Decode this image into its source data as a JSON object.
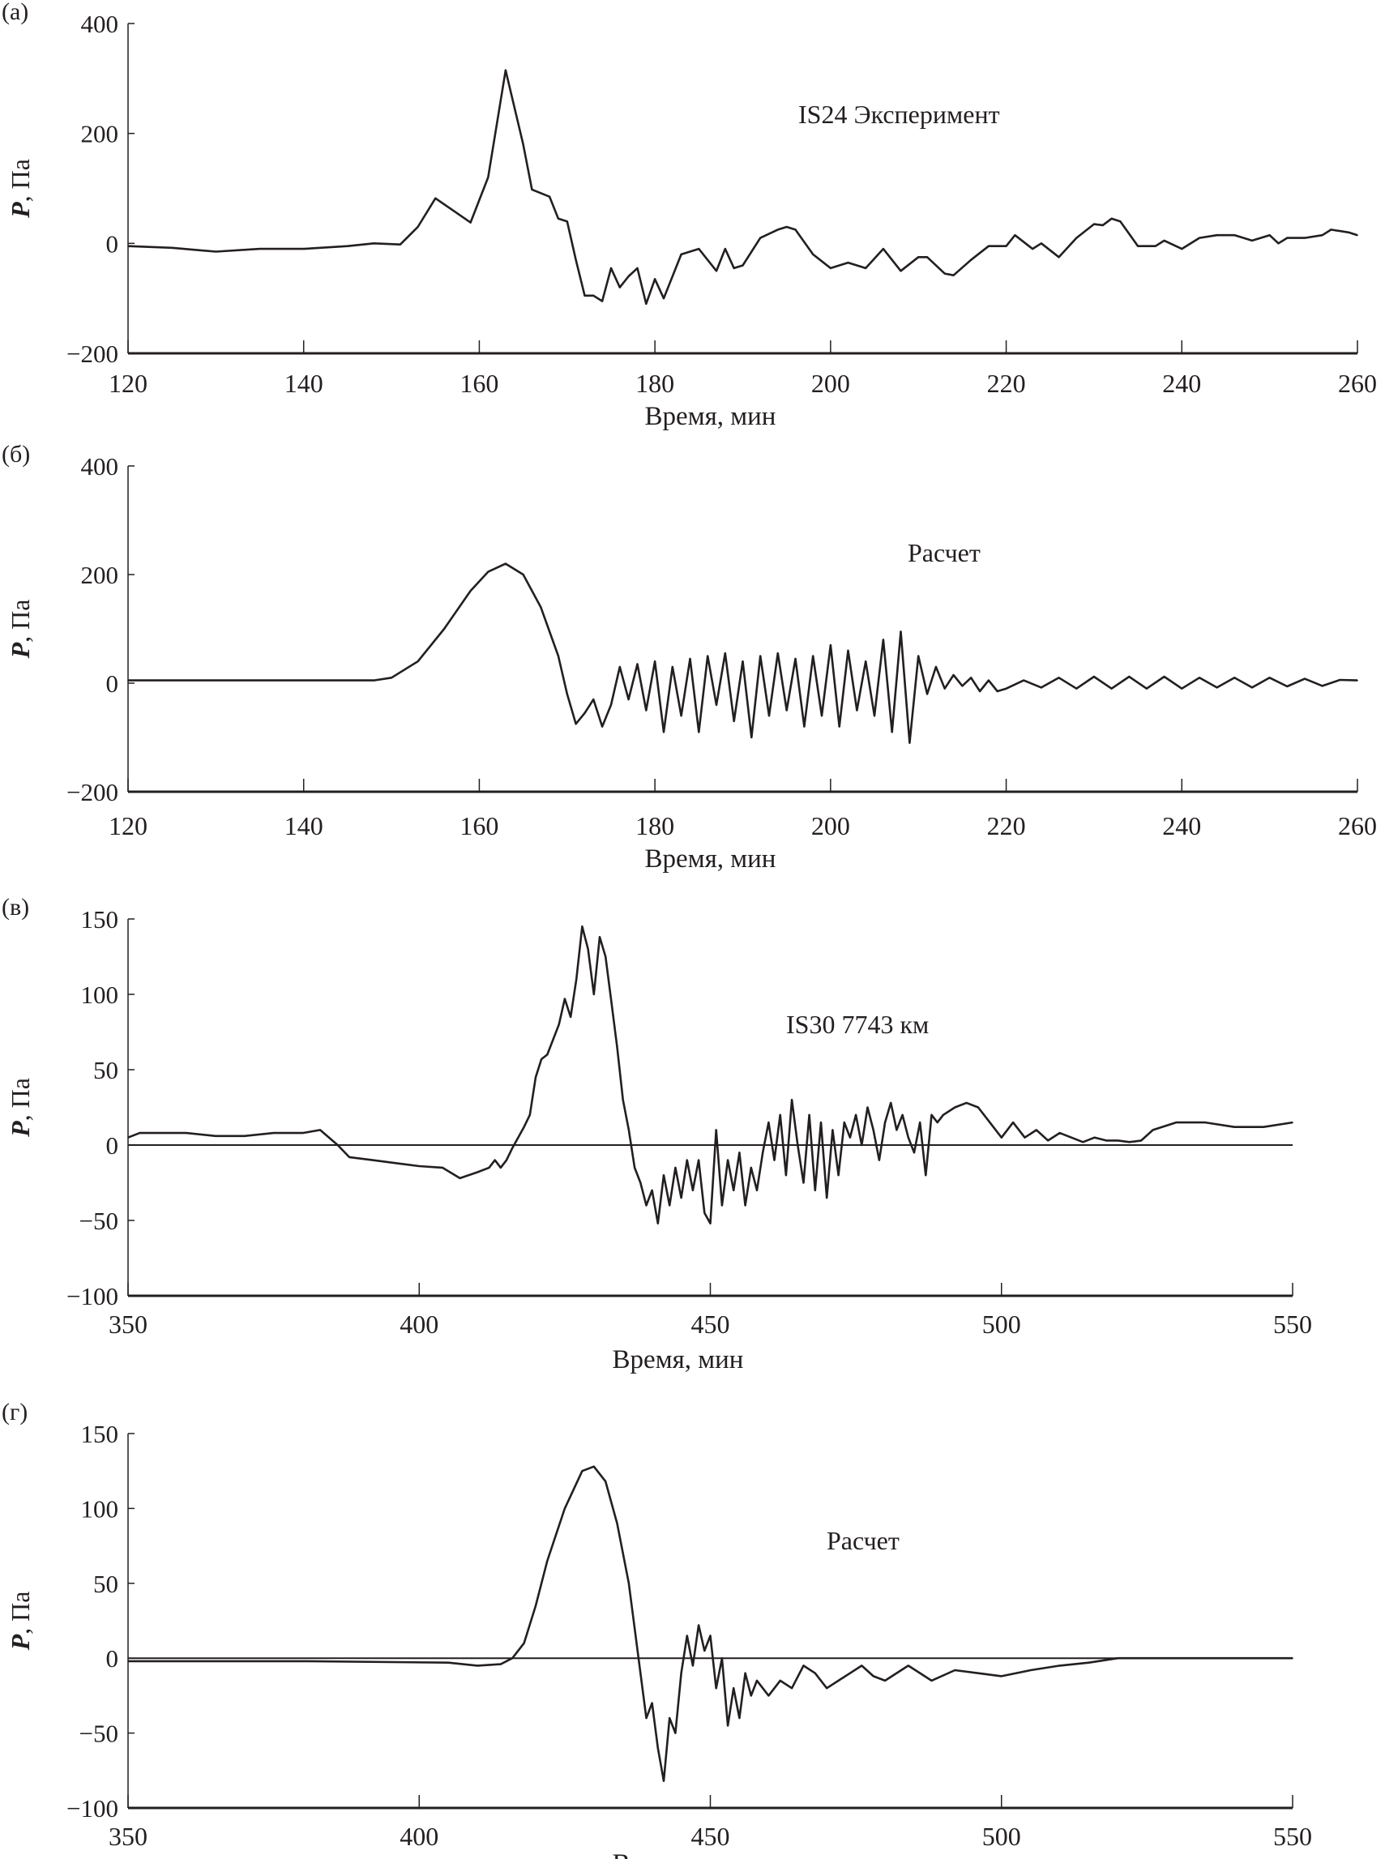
{
  "chart_data": [
    {
      "type": "line",
      "panel_label": "(а)",
      "annotation": "IS24 Эксперимент",
      "xlabel": "Время, мин",
      "ylabel_italic": "P",
      "ylabel_rest": ", Па",
      "xlim": [
        120,
        260
      ],
      "ylim": [
        -200,
        400
      ],
      "xticks": [
        120,
        140,
        160,
        180,
        200,
        220,
        240,
        260
      ],
      "yticks": [
        -200,
        0,
        200,
        400
      ],
      "zero_line": false,
      "points": [
        [
          120,
          -5
        ],
        [
          125,
          -8
        ],
        [
          130,
          -15
        ],
        [
          135,
          -10
        ],
        [
          140,
          -10
        ],
        [
          145,
          -5
        ],
        [
          148,
          0
        ],
        [
          151,
          -2
        ],
        [
          153,
          30
        ],
        [
          155,
          82
        ],
        [
          157,
          60
        ],
        [
          159,
          38
        ],
        [
          161,
          120
        ],
        [
          163,
          315
        ],
        [
          165,
          180
        ],
        [
          166,
          98
        ],
        [
          168,
          85
        ],
        [
          169,
          45
        ],
        [
          170,
          40
        ],
        [
          171,
          -30
        ],
        [
          172,
          -95
        ],
        [
          173,
          -95
        ],
        [
          174,
          -105
        ],
        [
          175,
          -45
        ],
        [
          176,
          -80
        ],
        [
          177,
          -60
        ],
        [
          178,
          -45
        ],
        [
          179,
          -110
        ],
        [
          180,
          -65
        ],
        [
          181,
          -100
        ],
        [
          183,
          -20
        ],
        [
          185,
          -10
        ],
        [
          187,
          -50
        ],
        [
          188,
          -10
        ],
        [
          189,
          -45
        ],
        [
          190,
          -40
        ],
        [
          192,
          10
        ],
        [
          194,
          25
        ],
        [
          195,
          30
        ],
        [
          196,
          25
        ],
        [
          198,
          -20
        ],
        [
          200,
          -45
        ],
        [
          202,
          -35
        ],
        [
          204,
          -45
        ],
        [
          206,
          -10
        ],
        [
          208,
          -50
        ],
        [
          210,
          -25
        ],
        [
          211,
          -25
        ],
        [
          213,
          -55
        ],
        [
          214,
          -58
        ],
        [
          216,
          -30
        ],
        [
          218,
          -5
        ],
        [
          220,
          -5
        ],
        [
          221,
          15
        ],
        [
          223,
          -10
        ],
        [
          224,
          0
        ],
        [
          226,
          -25
        ],
        [
          228,
          10
        ],
        [
          230,
          35
        ],
        [
          231,
          33
        ],
        [
          232,
          45
        ],
        [
          233,
          40
        ],
        [
          235,
          -5
        ],
        [
          237,
          -5
        ],
        [
          238,
          5
        ],
        [
          240,
          -10
        ],
        [
          242,
          10
        ],
        [
          244,
          15
        ],
        [
          246,
          15
        ],
        [
          248,
          5
        ],
        [
          250,
          15
        ],
        [
          251,
          0
        ],
        [
          252,
          10
        ],
        [
          254,
          10
        ],
        [
          256,
          15
        ],
        [
          257,
          25
        ],
        [
          259,
          20
        ],
        [
          260,
          15
        ]
      ]
    },
    {
      "type": "line",
      "panel_label": "(б)",
      "annotation": "Расчет",
      "xlabel": "Время, мин",
      "ylabel_italic": "P",
      "ylabel_rest": ", Па",
      "xlim": [
        120,
        260
      ],
      "ylim": [
        -200,
        400
      ],
      "xticks": [
        120,
        140,
        160,
        180,
        200,
        220,
        240,
        260
      ],
      "yticks": [
        -200,
        0,
        200,
        400
      ],
      "zero_line": false,
      "points": [
        [
          120,
          5
        ],
        [
          130,
          5
        ],
        [
          140,
          5
        ],
        [
          148,
          5
        ],
        [
          150,
          10
        ],
        [
          153,
          40
        ],
        [
          156,
          100
        ],
        [
          159,
          170
        ],
        [
          161,
          205
        ],
        [
          163,
          220
        ],
        [
          165,
          200
        ],
        [
          167,
          140
        ],
        [
          169,
          50
        ],
        [
          170,
          -20
        ],
        [
          171,
          -75
        ],
        [
          172,
          -55
        ],
        [
          173,
          -30
        ],
        [
          174,
          -80
        ],
        [
          175,
          -40
        ],
        [
          176,
          30
        ],
        [
          177,
          -30
        ],
        [
          178,
          35
        ],
        [
          179,
          -50
        ],
        [
          180,
          40
        ],
        [
          181,
          -90
        ],
        [
          182,
          30
        ],
        [
          183,
          -60
        ],
        [
          184,
          45
        ],
        [
          185,
          -90
        ],
        [
          186,
          50
        ],
        [
          187,
          -40
        ],
        [
          188,
          55
        ],
        [
          189,
          -70
        ],
        [
          190,
          40
        ],
        [
          191,
          -100
        ],
        [
          192,
          50
        ],
        [
          193,
          -60
        ],
        [
          194,
          55
        ],
        [
          195,
          -50
        ],
        [
          196,
          45
        ],
        [
          197,
          -80
        ],
        [
          198,
          50
        ],
        [
          199,
          -60
        ],
        [
          200,
          70
        ],
        [
          201,
          -80
        ],
        [
          202,
          60
        ],
        [
          203,
          -50
        ],
        [
          204,
          40
        ],
        [
          205,
          -60
        ],
        [
          206,
          80
        ],
        [
          207,
          -90
        ],
        [
          208,
          95
        ],
        [
          209,
          -110
        ],
        [
          210,
          50
        ],
        [
          211,
          -20
        ],
        [
          212,
          30
        ],
        [
          213,
          -10
        ],
        [
          214,
          15
        ],
        [
          215,
          -5
        ],
        [
          216,
          10
        ],
        [
          217,
          -15
        ],
        [
          218,
          5
        ],
        [
          219,
          -15
        ],
        [
          220,
          -10
        ],
        [
          222,
          5
        ],
        [
          224,
          -8
        ],
        [
          226,
          10
        ],
        [
          228,
          -10
        ],
        [
          230,
          12
        ],
        [
          232,
          -10
        ],
        [
          234,
          12
        ],
        [
          236,
          -10
        ],
        [
          238,
          12
        ],
        [
          240,
          -10
        ],
        [
          242,
          10
        ],
        [
          244,
          -8
        ],
        [
          246,
          10
        ],
        [
          248,
          -8
        ],
        [
          250,
          10
        ],
        [
          252,
          -6
        ],
        [
          254,
          8
        ],
        [
          256,
          -5
        ],
        [
          258,
          6
        ],
        [
          260,
          5
        ]
      ]
    },
    {
      "type": "line",
      "panel_label": "(в)",
      "annotation": "IS30 7743 км",
      "xlabel": "Время, мин",
      "ylabel_italic": "P",
      "ylabel_rest": ", Па",
      "xlim": [
        350,
        550
      ],
      "ylim": [
        -100,
        150
      ],
      "xticks": [
        350,
        400,
        450,
        500,
        550
      ],
      "yticks": [
        -100,
        -50,
        0,
        50,
        100,
        150
      ],
      "zero_line": true,
      "points": [
        [
          350,
          5
        ],
        [
          352,
          8
        ],
        [
          360,
          8
        ],
        [
          365,
          6
        ],
        [
          370,
          6
        ],
        [
          375,
          8
        ],
        [
          380,
          8
        ],
        [
          383,
          10
        ],
        [
          386,
          0
        ],
        [
          388,
          -8
        ],
        [
          392,
          -10
        ],
        [
          396,
          -12
        ],
        [
          400,
          -14
        ],
        [
          404,
          -15
        ],
        [
          407,
          -22
        ],
        [
          410,
          -18
        ],
        [
          412,
          -15
        ],
        [
          413,
          -10
        ],
        [
          414,
          -15
        ],
        [
          415,
          -10
        ],
        [
          416,
          -2
        ],
        [
          417,
          5
        ],
        [
          418,
          12
        ],
        [
          419,
          20
        ],
        [
          420,
          45
        ],
        [
          421,
          57
        ],
        [
          422,
          60
        ],
        [
          424,
          80
        ],
        [
          425,
          97
        ],
        [
          426,
          85
        ],
        [
          427,
          110
        ],
        [
          428,
          145
        ],
        [
          429,
          130
        ],
        [
          430,
          100
        ],
        [
          431,
          138
        ],
        [
          432,
          125
        ],
        [
          433,
          95
        ],
        [
          434,
          65
        ],
        [
          435,
          30
        ],
        [
          436,
          10
        ],
        [
          437,
          -15
        ],
        [
          438,
          -25
        ],
        [
          439,
          -40
        ],
        [
          440,
          -30
        ],
        [
          441,
          -52
        ],
        [
          442,
          -20
        ],
        [
          443,
          -40
        ],
        [
          444,
          -15
        ],
        [
          445,
          -35
        ],
        [
          446,
          -10
        ],
        [
          447,
          -30
        ],
        [
          448,
          -10
        ],
        [
          449,
          -45
        ],
        [
          450,
          -52
        ],
        [
          451,
          10
        ],
        [
          452,
          -40
        ],
        [
          453,
          -10
        ],
        [
          454,
          -30
        ],
        [
          455,
          -5
        ],
        [
          456,
          -40
        ],
        [
          457,
          -15
        ],
        [
          458,
          -30
        ],
        [
          459,
          -5
        ],
        [
          460,
          15
        ],
        [
          461,
          -10
        ],
        [
          462,
          20
        ],
        [
          463,
          -20
        ],
        [
          464,
          30
        ],
        [
          465,
          0
        ],
        [
          466,
          -25
        ],
        [
          467,
          20
        ],
        [
          468,
          -30
        ],
        [
          469,
          15
        ],
        [
          470,
          -35
        ],
        [
          471,
          10
        ],
        [
          472,
          -20
        ],
        [
          473,
          15
        ],
        [
          474,
          5
        ],
        [
          475,
          20
        ],
        [
          476,
          0
        ],
        [
          477,
          25
        ],
        [
          478,
          10
        ],
        [
          479,
          -10
        ],
        [
          480,
          15
        ],
        [
          481,
          28
        ],
        [
          482,
          10
        ],
        [
          483,
          20
        ],
        [
          484,
          5
        ],
        [
          485,
          -5
        ],
        [
          486,
          15
        ],
        [
          487,
          -20
        ],
        [
          488,
          20
        ],
        [
          489,
          15
        ],
        [
          490,
          20
        ],
        [
          492,
          25
        ],
        [
          494,
          28
        ],
        [
          496,
          25
        ],
        [
          498,
          15
        ],
        [
          500,
          5
        ],
        [
          502,
          15
        ],
        [
          504,
          5
        ],
        [
          506,
          10
        ],
        [
          508,
          3
        ],
        [
          510,
          8
        ],
        [
          512,
          5
        ],
        [
          514,
          2
        ],
        [
          516,
          5
        ],
        [
          518,
          3
        ],
        [
          520,
          3
        ],
        [
          522,
          2
        ],
        [
          524,
          3
        ],
        [
          526,
          10
        ],
        [
          530,
          15
        ],
        [
          535,
          15
        ],
        [
          540,
          12
        ],
        [
          545,
          12
        ],
        [
          550,
          15
        ]
      ]
    },
    {
      "type": "line",
      "panel_label": "(г)",
      "annotation": "Расчет",
      "xlabel": "Время, мин",
      "ylabel_italic": "P",
      "ylabel_rest": ", Па",
      "xlim": [
        350,
        550
      ],
      "ylim": [
        -100,
        150
      ],
      "xticks": [
        350,
        400,
        450,
        500,
        550
      ],
      "yticks": [
        -100,
        -50,
        0,
        50,
        100,
        150
      ],
      "zero_line": true,
      "points": [
        [
          350,
          -2
        ],
        [
          380,
          -2
        ],
        [
          405,
          -3
        ],
        [
          410,
          -5
        ],
        [
          414,
          -4
        ],
        [
          416,
          0
        ],
        [
          418,
          10
        ],
        [
          420,
          35
        ],
        [
          422,
          65
        ],
        [
          425,
          100
        ],
        [
          428,
          125
        ],
        [
          430,
          128
        ],
        [
          432,
          118
        ],
        [
          434,
          90
        ],
        [
          436,
          50
        ],
        [
          437,
          20
        ],
        [
          438,
          -10
        ],
        [
          439,
          -40
        ],
        [
          440,
          -30
        ],
        [
          441,
          -60
        ],
        [
          442,
          -82
        ],
        [
          443,
          -40
        ],
        [
          444,
          -50
        ],
        [
          445,
          -10
        ],
        [
          446,
          15
        ],
        [
          447,
          -5
        ],
        [
          448,
          22
        ],
        [
          449,
          5
        ],
        [
          450,
          15
        ],
        [
          451,
          -20
        ],
        [
          452,
          0
        ],
        [
          453,
          -45
        ],
        [
          454,
          -20
        ],
        [
          455,
          -40
        ],
        [
          456,
          -10
        ],
        [
          457,
          -25
        ],
        [
          458,
          -15
        ],
        [
          460,
          -25
        ],
        [
          462,
          -15
        ],
        [
          464,
          -20
        ],
        [
          466,
          -5
        ],
        [
          468,
          -10
        ],
        [
          470,
          -20
        ],
        [
          472,
          -15
        ],
        [
          474,
          -10
        ],
        [
          476,
          -5
        ],
        [
          478,
          -12
        ],
        [
          480,
          -15
        ],
        [
          484,
          -5
        ],
        [
          488,
          -15
        ],
        [
          492,
          -8
        ],
        [
          496,
          -10
        ],
        [
          500,
          -12
        ],
        [
          505,
          -8
        ],
        [
          510,
          -5
        ],
        [
          515,
          -3
        ],
        [
          520,
          0
        ],
        [
          550,
          0
        ]
      ]
    }
  ]
}
